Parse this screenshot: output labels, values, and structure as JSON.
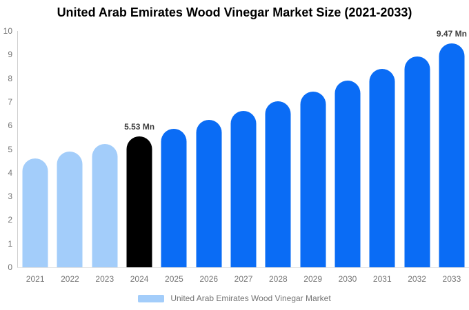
{
  "title": "United Arab Emirates Wood Vinegar Market Size (2021-2033)",
  "chart_data": {
    "type": "bar",
    "title": "United Arab Emirates Wood Vinegar Market Size (2021-2033)",
    "categories": [
      "2021",
      "2022",
      "2023",
      "2024",
      "2025",
      "2026",
      "2027",
      "2028",
      "2029",
      "2030",
      "2031",
      "2032",
      "2033"
    ],
    "values": [
      4.61,
      4.9,
      5.21,
      5.53,
      5.87,
      6.23,
      6.61,
      7.02,
      7.45,
      7.91,
      8.4,
      8.92,
      9.47
    ],
    "unit": "Mn",
    "ylim": [
      0,
      10
    ],
    "yticks": [
      0,
      1,
      2,
      3,
      4,
      5,
      6,
      7,
      8,
      9,
      10
    ],
    "grid": false,
    "legend": "United Arab Emirates Wood Vinegar Market",
    "legend_position": "bottom",
    "annotations": [
      {
        "category": "2024",
        "text": "5.53 Mn"
      },
      {
        "category": "2033",
        "text": "9.47 Mn"
      }
    ],
    "bar_colors": [
      "#A3CDFA",
      "#A3CDFA",
      "#A3CDFA",
      "#000000",
      "#0A6CF5",
      "#0A6CF5",
      "#0A6CF5",
      "#0A6CF5",
      "#0A6CF5",
      "#0A6CF5",
      "#0A6CF5",
      "#0A6CF5",
      "#0A6CF5"
    ],
    "colors": {
      "historical": "#A3CDFA",
      "base_year": "#000000",
      "forecast": "#0A6CF5"
    }
  }
}
